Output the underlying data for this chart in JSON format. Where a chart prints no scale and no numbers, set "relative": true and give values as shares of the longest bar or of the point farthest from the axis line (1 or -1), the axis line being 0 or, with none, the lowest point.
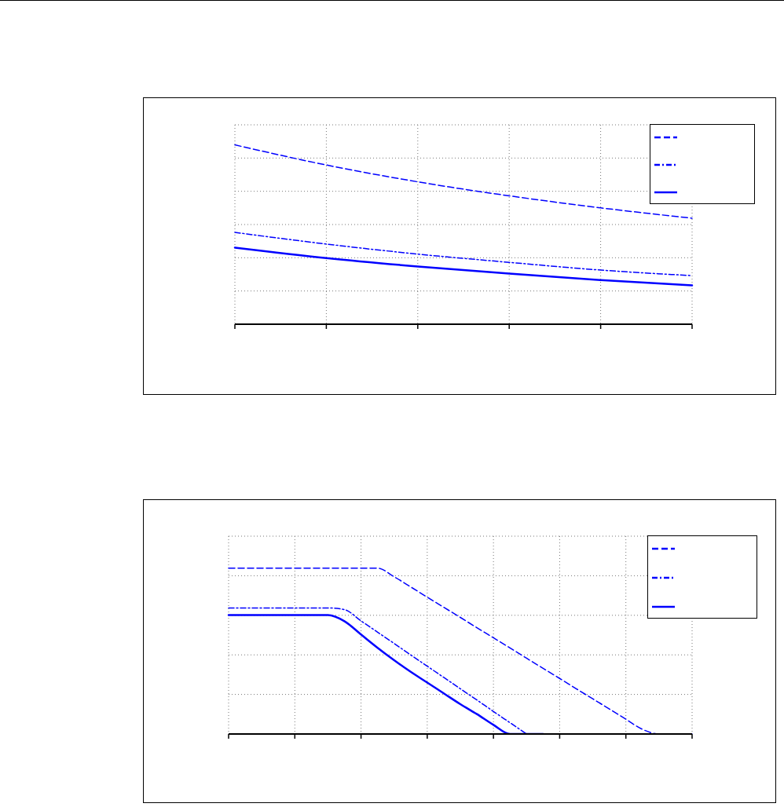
{
  "chart_data": [
    {
      "type": "line",
      "relative": true,
      "categories": [
        null,
        null,
        null,
        null,
        null,
        null
      ],
      "grid": true,
      "marker": "none",
      "series": [
        {
          "color": "#0000ff",
          "line_style": "dashed",
          "values": [
            1,
            0.888,
            0.794,
            0.716,
            0.649,
            0.591
          ]
        },
        {
          "color": "#0000ff",
          "line_style": "dotted",
          "values": [
            0.512,
            0.447,
            0.391,
            0.345,
            0.302,
            0.271
          ]
        },
        {
          "color": "#0000ff",
          "line_style": "solid",
          "values": [
            0.427,
            0.369,
            0.322,
            0.282,
            0.246,
            0.217
          ]
        }
      ]
    },
    {
      "type": "line",
      "relative": true,
      "categories": [
        null,
        null,
        null,
        null,
        null,
        null,
        null,
        null,
        null,
        null,
        null,
        null,
        null,
        null,
        null,
        null,
        null,
        null,
        null,
        null,
        null,
        null,
        null,
        null,
        null,
        null,
        null,
        null,
        null
      ],
      "grid": true,
      "marker": "none",
      "series": [
        {
          "color": "#0000ff",
          "line_style": "dashed",
          "values": [
            1,
            1,
            1,
            1,
            1,
            1,
            1,
            1,
            1,
            1,
            0.948,
            0.887,
            0.825,
            0.764,
            0.703,
            0.641,
            0.58,
            0.519,
            0.457,
            0.396,
            0.335,
            0.273,
            0.212,
            0.151,
            0.089,
            0.028,
            0,
            0,
            0
          ]
        },
        {
          "color": "#0000ff",
          "line_style": "dotted",
          "values": [
            0.76,
            0.76,
            0.76,
            0.76,
            0.76,
            0.76,
            0.76,
            0.75,
            0.682,
            0.614,
            0.546,
            0.477,
            0.409,
            0.341,
            0.273,
            0.205,
            0.136,
            0.068,
            0,
            null,
            null,
            null,
            null,
            null,
            null,
            null,
            null,
            null,
            null
          ]
        },
        {
          "color": "#0000ff",
          "line_style": "solid",
          "values": [
            0.717,
            0.717,
            0.717,
            0.717,
            0.717,
            0.717,
            0.717,
            0.68,
            0.6,
            0.52,
            0.445,
            0.375,
            0.31,
            0.245,
            0.18,
            0.12,
            0.055,
            0,
            0,
            0,
            null,
            null,
            null,
            null,
            null,
            null,
            null,
            null,
            null
          ]
        }
      ]
    }
  ]
}
